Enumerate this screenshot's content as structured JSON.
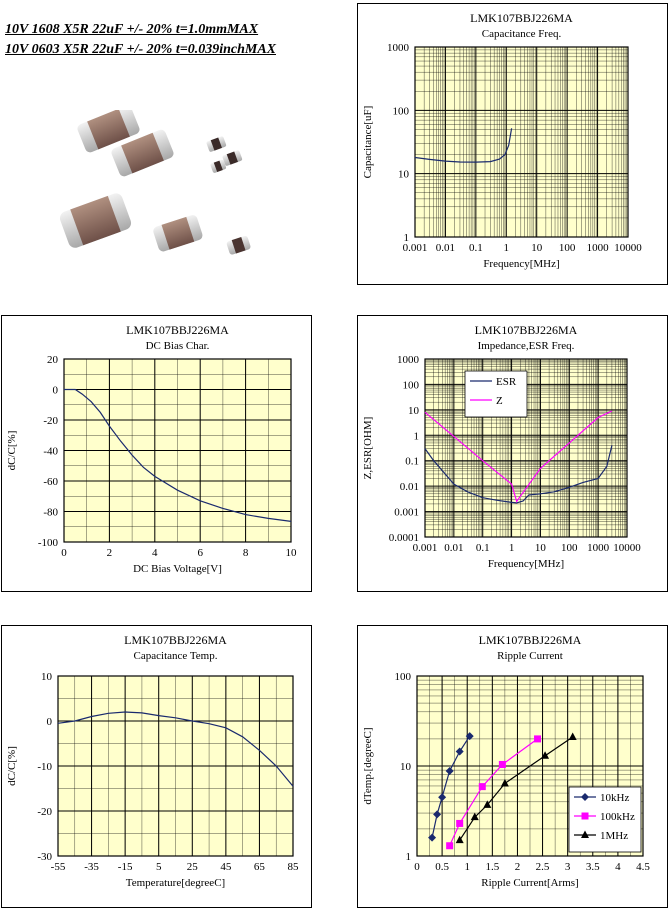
{
  "header": {
    "line1": "10V 1608 X5R 22uF +/- 20% t=1.0mmMAX",
    "line2": "10V 0603 X5R 22uF +/- 20% t=0.039inchMAX"
  },
  "colors": {
    "plot_bg": "#ffffcc",
    "grid": "#000000",
    "series_navy": "#1a2a6e",
    "series_magenta": "#ff00ff",
    "series_black": "#000000"
  },
  "chart_data": [
    {
      "id": "cap-freq",
      "type": "line",
      "part": "LMK107BBJ226MA",
      "title": "Capacitance Freq.",
      "xlabel": "Frequency[MHz]",
      "ylabel": "Capacitance[uF]",
      "xscale": "log",
      "yscale": "log",
      "xlim": [
        0.001,
        10000
      ],
      "ylim": [
        1,
        1000
      ],
      "xticks": [
        0.001,
        0.01,
        0.1,
        1,
        10,
        100,
        1000,
        10000
      ],
      "xtick_labels": [
        "0.001",
        "0.01",
        "0.1",
        "1",
        "10",
        "100",
        "1000",
        "10000"
      ],
      "yticks": [
        1,
        10,
        100,
        1000
      ],
      "ytick_labels": [
        "1",
        "10",
        "100",
        "1000"
      ],
      "grid": true,
      "series": [
        {
          "color": "navy",
          "x": [
            0.001,
            0.003,
            0.01,
            0.03,
            0.1,
            0.3,
            0.6,
            0.9,
            1.2,
            1.5
          ],
          "y": [
            18,
            16.8,
            15.8,
            15.3,
            15.2,
            15.5,
            17,
            20,
            28,
            52
          ]
        }
      ]
    },
    {
      "id": "dc-bias",
      "type": "line",
      "part": "LMK107BBJ226MA",
      "title": "DC Bias Char.",
      "xlabel": "DC Bias Voltage[V]",
      "ylabel": "dC/C[%]",
      "xscale": "linear",
      "yscale": "linear",
      "xlim": [
        0,
        10
      ],
      "ylim": [
        -100,
        20
      ],
      "xticks": [
        0,
        2,
        4,
        6,
        8,
        10
      ],
      "xtick_labels": [
        "0",
        "2",
        "4",
        "6",
        "8",
        "10"
      ],
      "yticks": [
        -100,
        -80,
        -60,
        -40,
        -20,
        0,
        20
      ],
      "ytick_labels": [
        "-100",
        "-80",
        "-60",
        "-40",
        "-20",
        "0",
        "20"
      ],
      "grid": true,
      "series": [
        {
          "color": "navy",
          "x": [
            0,
            0.5,
            0.8,
            1.2,
            1.6,
            2,
            2.5,
            3,
            3.5,
            4,
            5,
            6,
            7,
            8,
            9,
            10
          ],
          "y": [
            0,
            0,
            -3,
            -8,
            -15,
            -24,
            -34,
            -43,
            -51,
            -57,
            -66,
            -73,
            -78,
            -82,
            -84.5,
            -86.5
          ]
        }
      ]
    },
    {
      "id": "impedance",
      "type": "line",
      "part": "LMK107BBJ226MA",
      "title": "Impedance,ESR Freq.",
      "xlabel": "Frequency[MHz]",
      "ylabel": "Z,ESR[OHM]",
      "xscale": "log",
      "yscale": "log",
      "xlim": [
        0.001,
        10000
      ],
      "ylim": [
        0.0001,
        1000
      ],
      "xticks": [
        0.001,
        0.01,
        0.1,
        1,
        10,
        100,
        1000,
        10000
      ],
      "xtick_labels": [
        "0.001",
        "0.01",
        "0.1",
        "1",
        "10",
        "100",
        "1000",
        "10000"
      ],
      "yticks": [
        0.0001,
        0.001,
        0.01,
        0.1,
        1,
        10,
        100,
        1000
      ],
      "ytick_labels": [
        "0.0001",
        "0.001",
        "0.01",
        "0.1",
        "1",
        "10",
        "100",
        "1000"
      ],
      "grid": true,
      "legend": "top-center",
      "series": [
        {
          "name": "ESR",
          "color": "navy",
          "x": [
            0.001,
            0.002,
            0.005,
            0.01,
            0.03,
            0.1,
            0.3,
            1,
            1.5,
            2.5,
            4,
            10,
            30,
            100,
            300,
            1000,
            2000,
            3000
          ],
          "y": [
            0.3,
            0.1,
            0.03,
            0.012,
            0.006,
            0.0035,
            0.0028,
            0.0023,
            0.0022,
            0.0026,
            0.0045,
            0.005,
            0.006,
            0.009,
            0.014,
            0.02,
            0.06,
            0.4
          ]
        },
        {
          "name": "Z",
          "color": "magenta",
          "x": [
            0.001,
            0.01,
            0.1,
            1,
            1.5,
            2,
            10,
            100,
            1000,
            3000
          ],
          "y": [
            8,
            0.9,
            0.1,
            0.012,
            0.0025,
            0.004,
            0.05,
            0.5,
            5,
            9
          ]
        }
      ]
    },
    {
      "id": "cap-temp",
      "type": "line",
      "part": "LMK107BBJ226MA",
      "title": "Capacitance Temp.",
      "xlabel": "Temperature[degreeC]",
      "ylabel": "dC/C[%]",
      "xscale": "linear",
      "yscale": "linear",
      "xlim": [
        -55,
        85
      ],
      "ylim": [
        -30,
        10
      ],
      "xticks": [
        -55,
        -35,
        -15,
        5,
        25,
        45,
        65,
        85
      ],
      "xtick_labels": [
        "-55",
        "-35",
        "-15",
        "5",
        "25",
        "45",
        "65",
        "85"
      ],
      "yticks": [
        -30,
        -20,
        -10,
        0,
        10
      ],
      "ytick_labels": [
        "-30",
        "-20",
        "-10",
        "0",
        "10"
      ],
      "grid": true,
      "series": [
        {
          "color": "navy",
          "x": [
            -55,
            -45,
            -35,
            -25,
            -15,
            -5,
            5,
            15,
            25,
            35,
            45,
            55,
            65,
            75,
            85
          ],
          "y": [
            -0.5,
            0,
            1,
            1.7,
            2,
            1.8,
            1.2,
            0.7,
            0,
            -0.6,
            -1.5,
            -3.5,
            -6.5,
            -10,
            -14.5
          ]
        }
      ]
    },
    {
      "id": "ripple",
      "type": "line",
      "part": "LMK107BBJ226MA",
      "title": "Ripple Current",
      "xlabel": "Ripple Current[Arms]",
      "ylabel": "dTemp.[degreeC]",
      "xscale": "linear",
      "yscale": "log",
      "xlim": [
        0,
        4.5
      ],
      "ylim": [
        1,
        100
      ],
      "xticks": [
        0,
        0.5,
        1,
        1.5,
        2,
        2.5,
        3,
        3.5,
        4,
        4.5
      ],
      "xtick_labels": [
        "0",
        "0.5",
        "1",
        "1.5",
        "2",
        "2.5",
        "3",
        "3.5",
        "4",
        "4.5"
      ],
      "yticks": [
        1,
        10,
        100
      ],
      "ytick_labels": [
        "1",
        "10",
        "100"
      ],
      "grid": true,
      "legend": "bottom-right",
      "series": [
        {
          "name": "10kHz",
          "color": "navy",
          "marker": "diamond",
          "x": [
            0.3,
            0.4,
            0.5,
            0.65,
            0.85,
            1.05
          ],
          "y": [
            1.6,
            2.9,
            4.5,
            8.8,
            14.5,
            21.5
          ]
        },
        {
          "name": "100kHz",
          "color": "magenta",
          "marker": "square",
          "x": [
            0.65,
            0.85,
            1.3,
            1.7,
            2.4
          ],
          "y": [
            1.3,
            2.3,
            5.9,
            10.4,
            20
          ]
        },
        {
          "name": "1MHz",
          "color": "black",
          "marker": "triangle",
          "x": [
            0.85,
            1.15,
            1.4,
            1.75,
            2.55,
            3.1
          ],
          "y": [
            1.5,
            2.7,
            3.7,
            6.4,
            13,
            21
          ]
        }
      ]
    }
  ]
}
